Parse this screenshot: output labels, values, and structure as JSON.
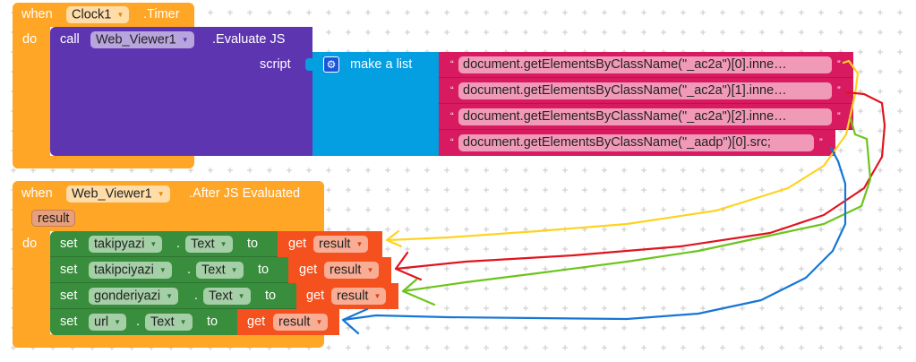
{
  "timer_event": {
    "when": "when",
    "component": "Clock1",
    "event": ".Timer",
    "do": "do",
    "call": {
      "call": "call",
      "component": "Web_Viewer1",
      "method": ".Evaluate JS",
      "script_label": "script",
      "make_list": {
        "label": "make a list",
        "icon": "gear-icon",
        "items": [
          "document.getElementsByClassName(\"_ac2a\")[0].inne…",
          "document.getElementsByClassName(\"_ac2a\")[1].inne…",
          "document.getElementsByClassName(\"_ac2a\")[2].inne…",
          "document.getElementsByClassName(\"_aadp\")[0].src;"
        ],
        "open_quote": "“",
        "close_quote": "”"
      }
    }
  },
  "after_js_event": {
    "when": "when",
    "component": "Web_Viewer1",
    "event": ".After JS Evaluated",
    "param": "result",
    "do": "do",
    "rows": [
      {
        "set": "set",
        "component": "takipyazi",
        "dot": ".",
        "property": "Text",
        "to": "to",
        "get": "get",
        "var": "result"
      },
      {
        "set": "set",
        "component": "takipciyazi",
        "dot": ".",
        "property": "Text",
        "to": "to",
        "get": "get",
        "var": "result"
      },
      {
        "set": "set",
        "component": "gonderiyazi",
        "dot": ".",
        "property": "Text",
        "to": "to",
        "get": "get",
        "var": "result"
      },
      {
        "set": "set",
        "component": "url",
        "dot": ".",
        "property": "Text",
        "to": "to",
        "get": "get",
        "var": "result"
      }
    ]
  },
  "annotation_colors": [
    "#ffd21f",
    "#e0141e",
    "#6cc51c",
    "#1676d6"
  ],
  "block_colors": {
    "event": "#ffa626",
    "web_viewer": "#5e35b1",
    "list": "#049fe1",
    "text": "#d81b60",
    "setter": "#388e3c",
    "variable": "#f4511e"
  }
}
